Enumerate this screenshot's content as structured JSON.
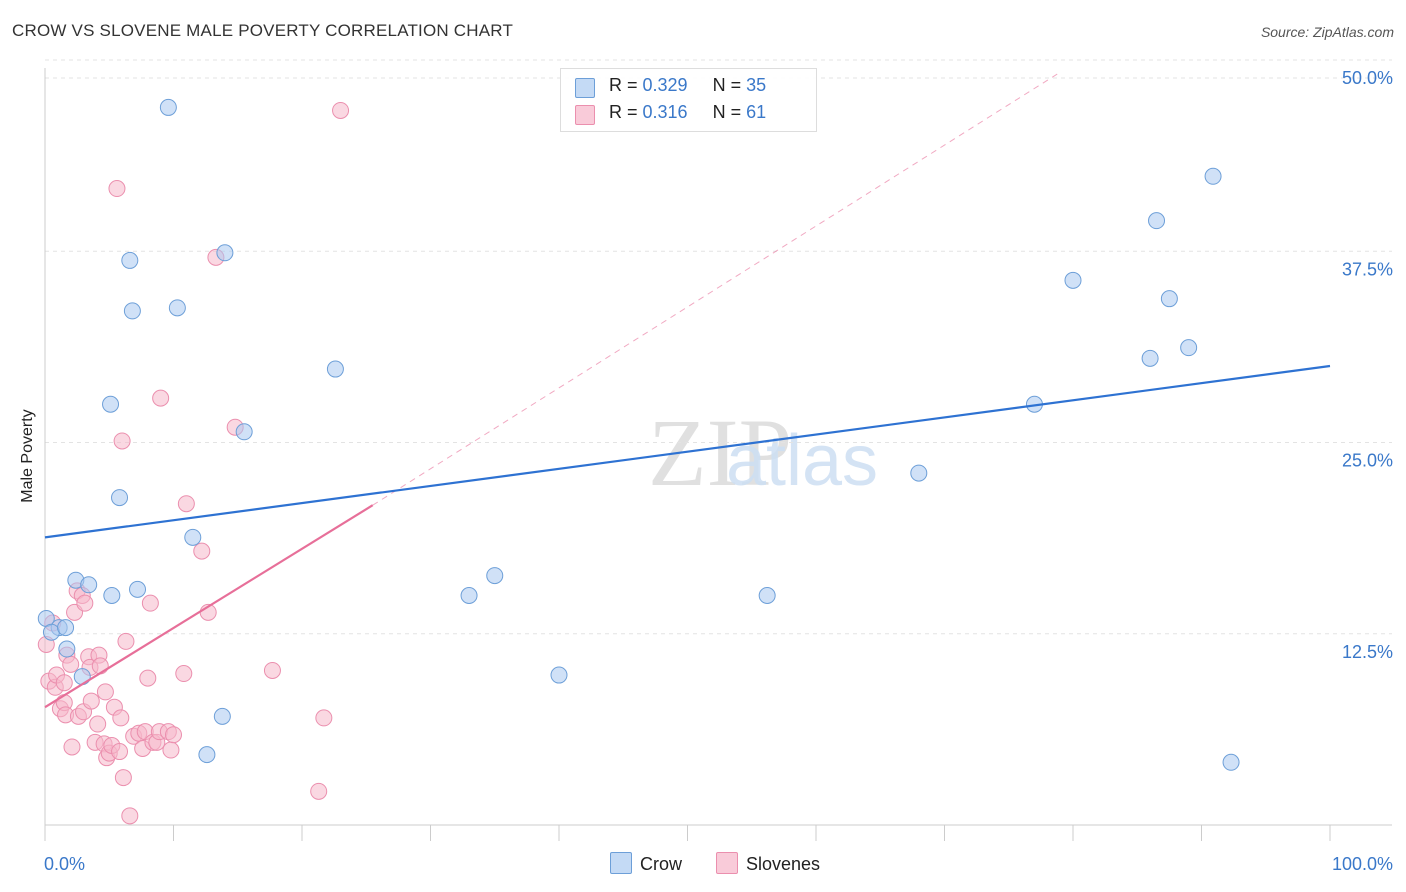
{
  "title": "CROW VS SLOVENE MALE POVERTY CORRELATION CHART",
  "source": "Source: ZipAtlas.com",
  "watermark": {
    "zip": "ZIP",
    "atlas": "atlas"
  },
  "colors": {
    "crow_fill": "#a9c8f0",
    "crow_stroke": "#6d9fd8",
    "crow_line": "#2e72d2",
    "slovene_fill": "#f6b8cb",
    "slovene_stroke": "#eb8fae",
    "slovene_line": "#e76f99",
    "grid": "#e3e3e3",
    "tick_label": "#3a78c9"
  },
  "legend": {
    "rows": [
      {
        "r_label": "R = ",
        "r_value": "0.329",
        "n_label": "N = ",
        "n_value": "35"
      },
      {
        "r_label": "R = ",
        "r_value": "0.316",
        "n_label": "N = ",
        "n_value": "61"
      }
    ],
    "bottom": [
      "Crow",
      "Slovenes"
    ]
  },
  "chart_data": {
    "type": "scatter",
    "title": "CROW VS SLOVENE MALE POVERTY CORRELATION CHART",
    "xlabel": "",
    "ylabel": "Male Poverty",
    "xlim": [
      0,
      100
    ],
    "ylim": [
      0,
      52
    ],
    "x_tick_labels": [
      "0.0%",
      "100.0%"
    ],
    "y_ticks": [
      12.5,
      25.0,
      37.5,
      50.0
    ],
    "y_tick_labels": [
      "12.5%",
      "25.0%",
      "37.5%",
      "50.0%"
    ],
    "grid": true,
    "series": [
      {
        "name": "Crow",
        "r": 0.329,
        "n": 35,
        "trend": {
          "x": [
            0,
            100
          ],
          "y": [
            18.8,
            30.0
          ]
        },
        "points": [
          [
            0.1,
            13.5
          ],
          [
            1.1,
            12.9
          ],
          [
            1.7,
            11.5
          ],
          [
            2.4,
            16.0
          ],
          [
            2.9,
            9.7
          ],
          [
            3.4,
            15.7
          ],
          [
            5.2,
            15.0
          ],
          [
            5.1,
            27.5
          ],
          [
            5.8,
            21.4
          ],
          [
            6.6,
            36.9
          ],
          [
            6.8,
            33.6
          ],
          [
            7.2,
            15.4
          ],
          [
            9.6,
            46.9
          ],
          [
            10.3,
            33.8
          ],
          [
            11.5,
            18.8
          ],
          [
            12.6,
            4.6
          ],
          [
            13.8,
            7.1
          ],
          [
            14.0,
            37.4
          ],
          [
            15.5,
            25.7
          ],
          [
            22.6,
            29.8
          ],
          [
            33.0,
            15.0
          ],
          [
            35.0,
            16.3
          ],
          [
            40.0,
            9.8
          ],
          [
            56.2,
            15.0
          ],
          [
            68.0,
            23.0
          ],
          [
            77.0,
            27.5
          ],
          [
            80.0,
            35.6
          ],
          [
            86.0,
            30.5
          ],
          [
            86.5,
            39.5
          ],
          [
            87.5,
            34.4
          ],
          [
            89.0,
            31.2
          ],
          [
            90.9,
            42.4
          ],
          [
            92.3,
            4.1
          ],
          [
            0.5,
            12.6
          ],
          [
            1.6,
            12.9
          ]
        ]
      },
      {
        "name": "Slovenes",
        "r": 0.316,
        "n": 61,
        "trend": {
          "x": [
            0,
            25.5
          ],
          "y": [
            7.7,
            20.9
          ]
        },
        "trend_extension": {
          "x": [
            25.5,
            79.0
          ],
          "y": [
            20.9,
            49.2
          ]
        },
        "points": [
          [
            0.1,
            11.8
          ],
          [
            0.3,
            9.4
          ],
          [
            0.6,
            13.2
          ],
          [
            0.8,
            9.0
          ],
          [
            0.9,
            9.8
          ],
          [
            1.2,
            7.6
          ],
          [
            1.5,
            9.3
          ],
          [
            1.5,
            8.0
          ],
          [
            1.6,
            7.2
          ],
          [
            1.7,
            11.1
          ],
          [
            2.0,
            10.5
          ],
          [
            2.1,
            5.1
          ],
          [
            2.3,
            13.9
          ],
          [
            2.5,
            15.3
          ],
          [
            2.6,
            7.1
          ],
          [
            2.9,
            15.0
          ],
          [
            3.0,
            7.4
          ],
          [
            3.1,
            14.5
          ],
          [
            3.4,
            11.0
          ],
          [
            3.5,
            10.3
          ],
          [
            3.6,
            8.1
          ],
          [
            3.9,
            5.4
          ],
          [
            4.1,
            6.6
          ],
          [
            4.2,
            11.1
          ],
          [
            4.3,
            10.4
          ],
          [
            4.6,
            5.3
          ],
          [
            4.7,
            8.7
          ],
          [
            4.8,
            4.4
          ],
          [
            5.0,
            4.7
          ],
          [
            5.2,
            5.2
          ],
          [
            5.4,
            7.7
          ],
          [
            5.6,
            41.6
          ],
          [
            5.8,
            4.8
          ],
          [
            5.9,
            7.0
          ],
          [
            6.0,
            25.1
          ],
          [
            6.1,
            3.1
          ],
          [
            6.3,
            12.0
          ],
          [
            6.6,
            0.6
          ],
          [
            6.9,
            5.8
          ],
          [
            7.3,
            6.0
          ],
          [
            7.6,
            5.0
          ],
          [
            7.8,
            6.1
          ],
          [
            8.0,
            9.6
          ],
          [
            8.2,
            14.5
          ],
          [
            8.4,
            5.4
          ],
          [
            8.7,
            5.4
          ],
          [
            8.9,
            6.1
          ],
          [
            9.0,
            27.9
          ],
          [
            9.6,
            6.1
          ],
          [
            9.8,
            4.9
          ],
          [
            10.0,
            5.9
          ],
          [
            10.8,
            9.9
          ],
          [
            11.0,
            21.0
          ],
          [
            12.2,
            17.9
          ],
          [
            12.7,
            13.9
          ],
          [
            13.3,
            37.1
          ],
          [
            14.8,
            26.0
          ],
          [
            17.7,
            10.1
          ],
          [
            21.3,
            2.2
          ],
          [
            21.7,
            7.0
          ],
          [
            23.0,
            46.7
          ]
        ]
      }
    ]
  }
}
